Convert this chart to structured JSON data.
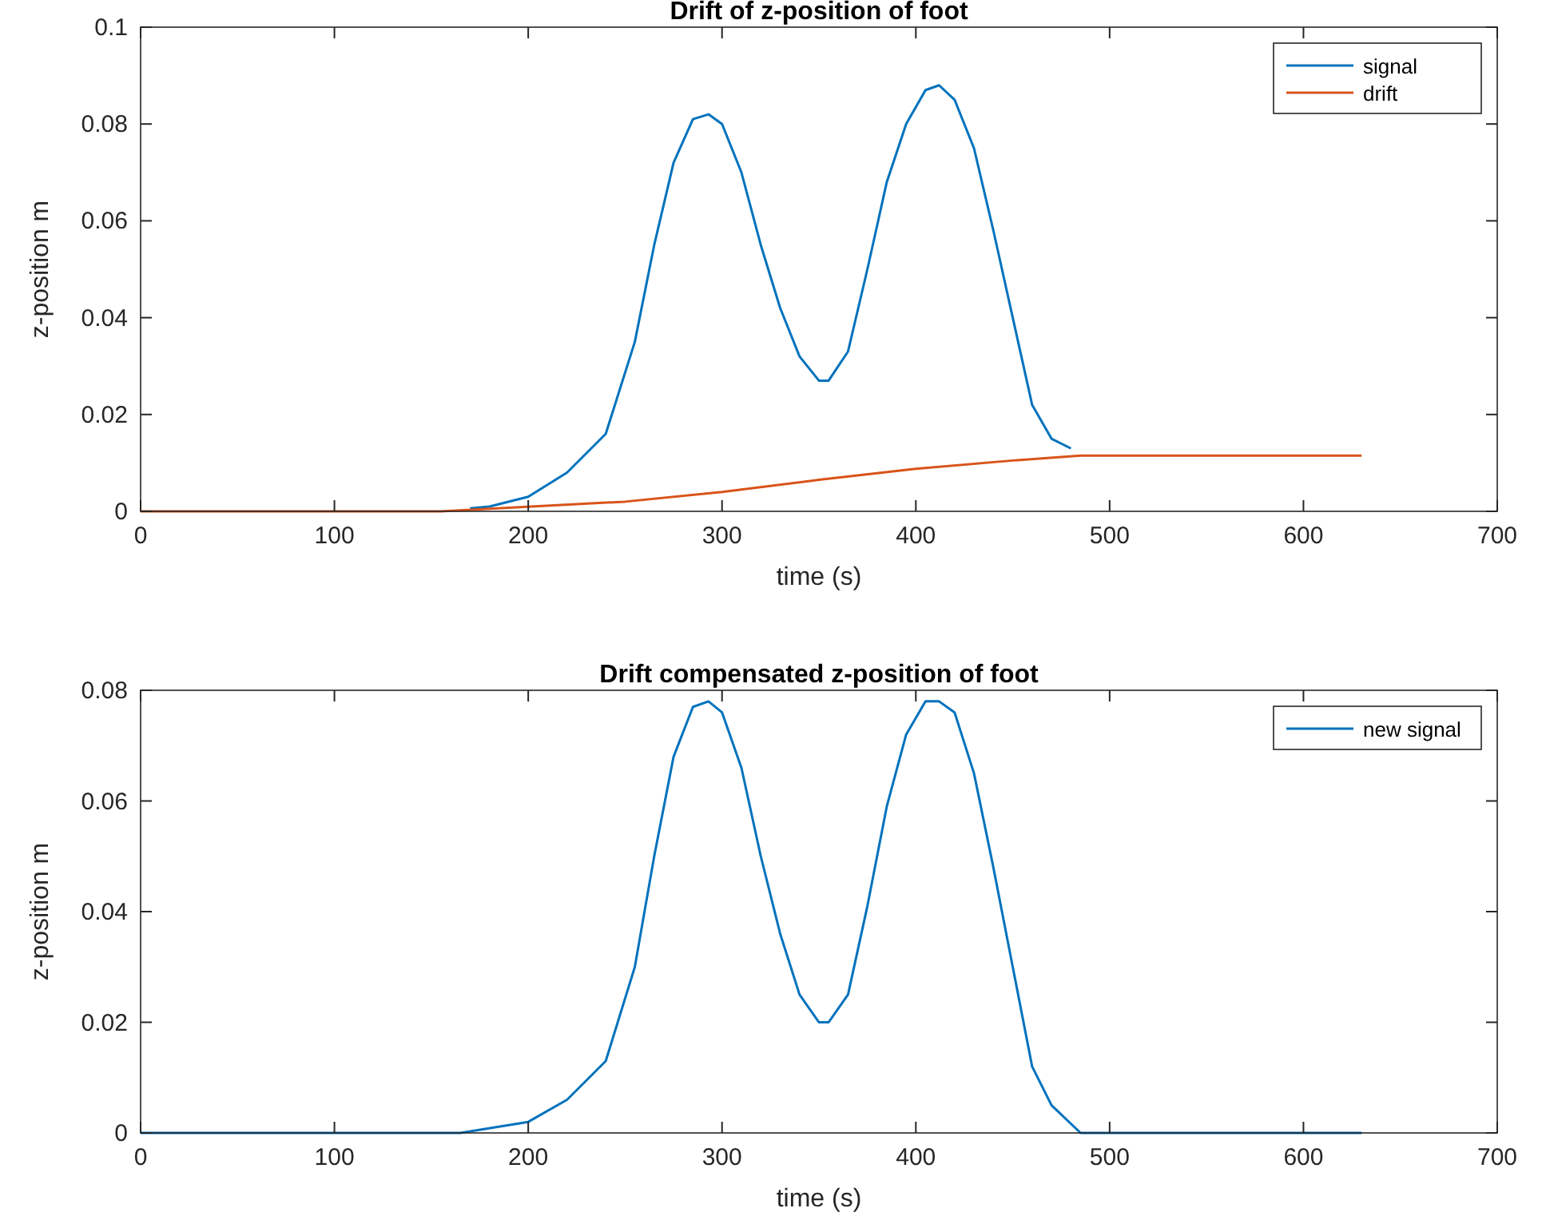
{
  "chart_data": [
    {
      "type": "line",
      "title": "Drift of z-position of foot",
      "xlabel": "time (s)",
      "ylabel": "z-position m",
      "xlim": [
        0,
        700
      ],
      "xticks": [
        0,
        100,
        200,
        300,
        400,
        500,
        600,
        700
      ],
      "ylim": [
        0,
        0.1
      ],
      "yticks": [
        0,
        0.02,
        0.04,
        0.06,
        0.08,
        0.1
      ],
      "legend": "top right",
      "grid": false,
      "series": [
        {
          "name": "signal",
          "color": "#0072bd",
          "x": [
            170,
            180,
            200,
            220,
            240,
            255,
            265,
            275,
            285,
            293,
            300,
            310,
            320,
            330,
            340,
            350,
            355,
            365,
            375,
            385,
            395,
            405,
            412,
            420,
            430,
            440,
            450,
            460,
            470,
            480
          ],
          "values": [
            0.0006,
            0.001,
            0.003,
            0.008,
            0.016,
            0.035,
            0.055,
            0.072,
            0.081,
            0.082,
            0.08,
            0.07,
            0.055,
            0.042,
            0.032,
            0.027,
            0.027,
            0.033,
            0.05,
            0.068,
            0.08,
            0.087,
            0.088,
            0.085,
            0.075,
            0.058,
            0.04,
            0.022,
            0.015,
            0.013
          ]
        },
        {
          "name": "drift",
          "color": "#d95319",
          "x": [
            0,
            155,
            250,
            300,
            350,
            400,
            450,
            485,
            630
          ],
          "values": [
            0,
            0,
            0.002,
            0.004,
            0.0065,
            0.0088,
            0.0105,
            0.0115,
            0.0115
          ]
        }
      ]
    },
    {
      "type": "line",
      "title": "Drift compensated z-position of foot",
      "xlabel": "time (s)",
      "ylabel": "z-position m",
      "xlim": [
        0,
        700
      ],
      "xticks": [
        0,
        100,
        200,
        300,
        400,
        500,
        600,
        700
      ],
      "ylim": [
        0,
        0.08
      ],
      "yticks": [
        0,
        0.02,
        0.04,
        0.06,
        0.08
      ],
      "legend": "top right",
      "grid": false,
      "series": [
        {
          "name": "new signal",
          "color": "#0072bd",
          "x": [
            0,
            165,
            200,
            220,
            240,
            255,
            265,
            275,
            285,
            293,
            300,
            310,
            320,
            330,
            340,
            350,
            355,
            365,
            375,
            385,
            395,
            405,
            412,
            420,
            430,
            440,
            450,
            460,
            470,
            485,
            630
          ],
          "values": [
            0,
            0,
            0.002,
            0.006,
            0.013,
            0.03,
            0.05,
            0.068,
            0.077,
            0.078,
            0.076,
            0.066,
            0.05,
            0.036,
            0.025,
            0.02,
            0.02,
            0.025,
            0.041,
            0.059,
            0.072,
            0.078,
            0.078,
            0.076,
            0.065,
            0.048,
            0.03,
            0.012,
            0.005,
            0,
            0
          ]
        }
      ]
    }
  ]
}
